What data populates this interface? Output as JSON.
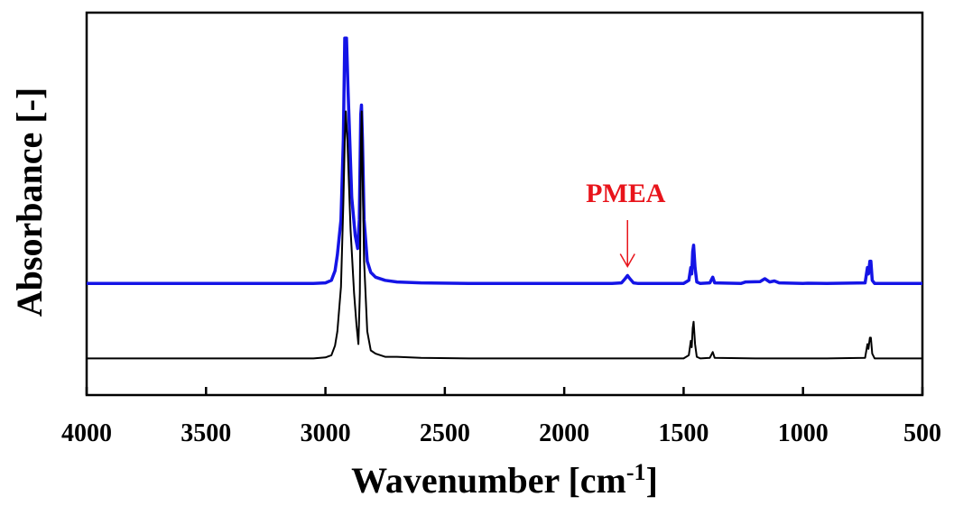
{
  "chart_data": {
    "type": "line",
    "xlabel": "Wavenumber [cm",
    "xlabel_sup": "-1",
    "xlabel_end": "]",
    "ylabel": "Absorbance [-]",
    "xlim": [
      4000,
      500
    ],
    "x_reversed": true,
    "ylim": [
      0,
      1.2
    ],
    "grid": false,
    "xticks": [
      4000,
      3500,
      3000,
      2500,
      2000,
      1500,
      1000,
      500
    ],
    "annotation": {
      "text": "PMEA",
      "x": 1735,
      "color": "#e8141b"
    },
    "series": [
      {
        "color": "#1414e6",
        "linewidth": 3.5,
        "points": [
          [
            4000,
            0.35
          ],
          [
            3600,
            0.35
          ],
          [
            3200,
            0.35
          ],
          [
            3050,
            0.35
          ],
          [
            3000,
            0.352
          ],
          [
            2975,
            0.36
          ],
          [
            2960,
            0.39
          ],
          [
            2950,
            0.44
          ],
          [
            2935,
            0.55
          ],
          [
            2925,
            0.8
          ],
          [
            2919,
            1.12
          ],
          [
            2912,
            1.12
          ],
          [
            2905,
            0.95
          ],
          [
            2890,
            0.62
          ],
          [
            2875,
            0.5
          ],
          [
            2865,
            0.46
          ],
          [
            2858,
            0.55
          ],
          [
            2852,
            0.88
          ],
          [
            2849,
            0.91
          ],
          [
            2845,
            0.8
          ],
          [
            2838,
            0.55
          ],
          [
            2825,
            0.42
          ],
          [
            2810,
            0.385
          ],
          [
            2790,
            0.37
          ],
          [
            2750,
            0.36
          ],
          [
            2700,
            0.355
          ],
          [
            2600,
            0.352
          ],
          [
            2400,
            0.35
          ],
          [
            2100,
            0.35
          ],
          [
            1800,
            0.35
          ],
          [
            1760,
            0.352
          ],
          [
            1745,
            0.365
          ],
          [
            1735,
            0.375
          ],
          [
            1725,
            0.365
          ],
          [
            1710,
            0.352
          ],
          [
            1690,
            0.35
          ],
          [
            1500,
            0.35
          ],
          [
            1478,
            0.36
          ],
          [
            1470,
            0.4
          ],
          [
            1466,
            0.38
          ],
          [
            1462,
            0.45
          ],
          [
            1458,
            0.47
          ],
          [
            1452,
            0.4
          ],
          [
            1445,
            0.355
          ],
          [
            1430,
            0.35
          ],
          [
            1390,
            0.352
          ],
          [
            1378,
            0.37
          ],
          [
            1370,
            0.352
          ],
          [
            1260,
            0.35
          ],
          [
            1240,
            0.355
          ],
          [
            1180,
            0.356
          ],
          [
            1160,
            0.365
          ],
          [
            1140,
            0.355
          ],
          [
            1120,
            0.358
          ],
          [
            1100,
            0.352
          ],
          [
            1000,
            0.35
          ],
          [
            980,
            0.351
          ],
          [
            900,
            0.35
          ],
          [
            740,
            0.352
          ],
          [
            730,
            0.4
          ],
          [
            726,
            0.38
          ],
          [
            720,
            0.42
          ],
          [
            716,
            0.42
          ],
          [
            710,
            0.36
          ],
          [
            700,
            0.35
          ],
          [
            600,
            0.35
          ],
          [
            500,
            0.35
          ]
        ]
      },
      {
        "color": "#000000",
        "linewidth": 2,
        "points": [
          [
            4000,
            0.115
          ],
          [
            3600,
            0.115
          ],
          [
            3200,
            0.115
          ],
          [
            3050,
            0.115
          ],
          [
            3000,
            0.118
          ],
          [
            2975,
            0.125
          ],
          [
            2960,
            0.155
          ],
          [
            2950,
            0.2
          ],
          [
            2935,
            0.34
          ],
          [
            2925,
            0.6
          ],
          [
            2919,
            0.8
          ],
          [
            2915,
            0.89
          ],
          [
            2908,
            0.8
          ],
          [
            2895,
            0.52
          ],
          [
            2880,
            0.32
          ],
          [
            2870,
            0.22
          ],
          [
            2862,
            0.16
          ],
          [
            2856,
            0.32
          ],
          [
            2851,
            0.8
          ],
          [
            2848,
            0.89
          ],
          [
            2844,
            0.7
          ],
          [
            2838,
            0.42
          ],
          [
            2825,
            0.2
          ],
          [
            2810,
            0.14
          ],
          [
            2790,
            0.13
          ],
          [
            2750,
            0.12
          ],
          [
            2700,
            0.12
          ],
          [
            2600,
            0.117
          ],
          [
            2400,
            0.115
          ],
          [
            2000,
            0.115
          ],
          [
            1500,
            0.115
          ],
          [
            1478,
            0.125
          ],
          [
            1470,
            0.17
          ],
          [
            1466,
            0.15
          ],
          [
            1462,
            0.21
          ],
          [
            1458,
            0.23
          ],
          [
            1452,
            0.16
          ],
          [
            1445,
            0.12
          ],
          [
            1430,
            0.115
          ],
          [
            1390,
            0.117
          ],
          [
            1378,
            0.135
          ],
          [
            1370,
            0.117
          ],
          [
            1200,
            0.115
          ],
          [
            1000,
            0.115
          ],
          [
            900,
            0.115
          ],
          [
            740,
            0.117
          ],
          [
            730,
            0.16
          ],
          [
            726,
            0.145
          ],
          [
            720,
            0.18
          ],
          [
            716,
            0.18
          ],
          [
            710,
            0.13
          ],
          [
            700,
            0.115
          ],
          [
            600,
            0.115
          ],
          [
            500,
            0.115
          ]
        ]
      }
    ]
  }
}
